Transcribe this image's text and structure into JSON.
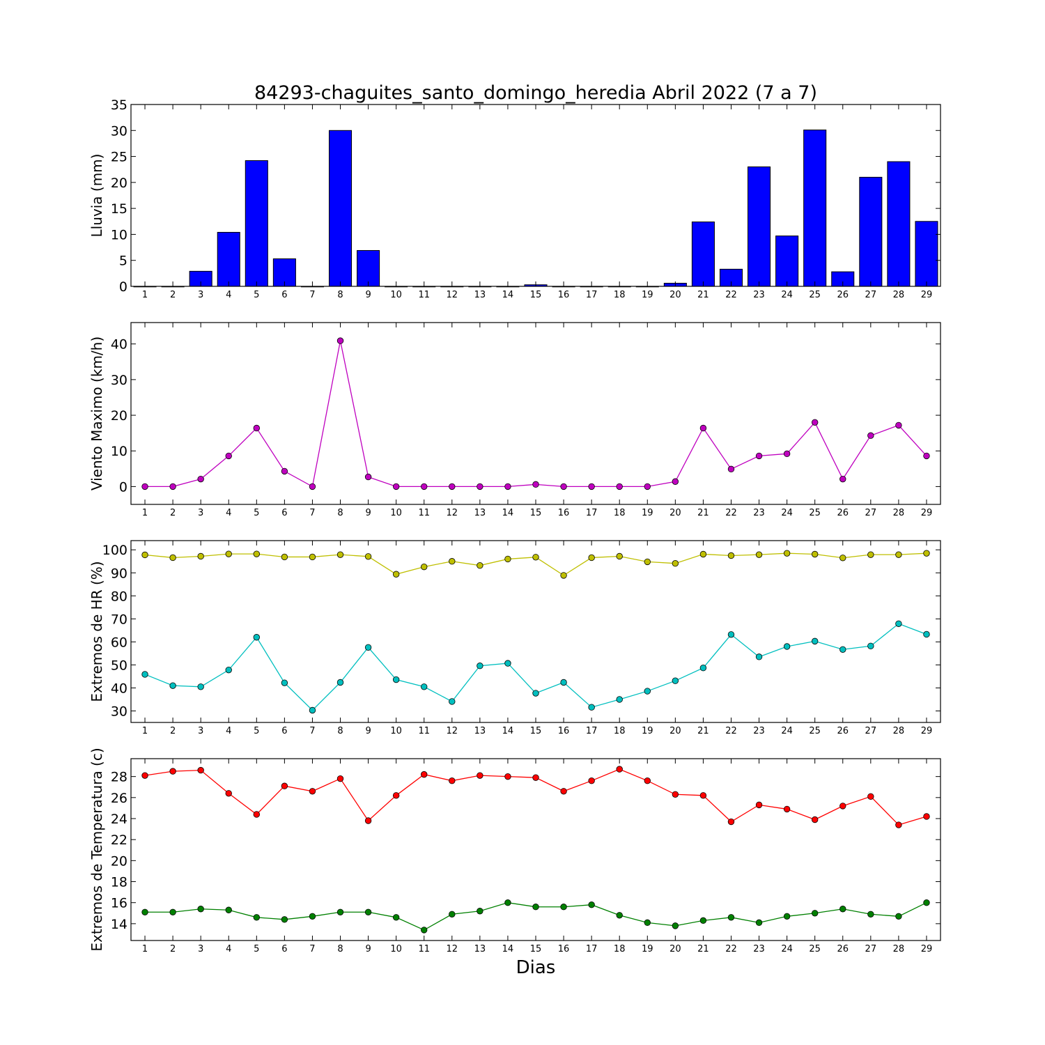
{
  "title": "84293-chaguites_santo_domingo_heredia Abril 2022  (7 a 7)",
  "xlabel": "Dias",
  "chart_data": [
    {
      "type": "bar",
      "ylabel": "Lluvia (mm)",
      "ylim": [
        0,
        35
      ],
      "yticks": [
        0,
        5,
        10,
        15,
        20,
        25,
        30,
        35
      ],
      "categories": [
        1,
        2,
        3,
        4,
        5,
        6,
        7,
        8,
        9,
        10,
        11,
        12,
        13,
        14,
        15,
        16,
        17,
        18,
        19,
        20,
        21,
        22,
        23,
        24,
        25,
        26,
        27,
        28,
        29
      ],
      "series": [
        {
          "color": "#0000ff",
          "values": [
            0,
            0,
            2.9,
            10.4,
            24.2,
            5.3,
            0,
            30,
            6.9,
            0,
            0,
            0,
            0,
            0,
            0.3,
            0,
            0,
            0,
            0,
            0.6,
            12.4,
            3.3,
            23,
            9.7,
            30.1,
            2.8,
            21,
            24,
            12.5
          ]
        }
      ]
    },
    {
      "type": "line",
      "ylabel": "Viento Maximo (km/h)",
      "ylim": [
        -5,
        46
      ],
      "yticks": [
        0,
        10,
        20,
        30,
        40
      ],
      "x": [
        1,
        2,
        3,
        4,
        5,
        6,
        7,
        8,
        9,
        10,
        11,
        12,
        13,
        14,
        15,
        16,
        17,
        18,
        19,
        20,
        21,
        22,
        23,
        24,
        25,
        26,
        27,
        28,
        29
      ],
      "series": [
        {
          "color": "#bf00bf",
          "values": [
            0,
            0,
            2.1,
            8.6,
            16.4,
            4.3,
            0,
            40.9,
            2.7,
            0,
            0,
            0,
            0,
            0,
            0.6,
            0,
            0,
            0,
            0,
            1.4,
            16.4,
            4.9,
            8.6,
            9.2,
            18,
            2.1,
            14.3,
            17.2,
            8.6
          ]
        }
      ]
    },
    {
      "type": "line",
      "ylabel": "Extremos de HR (%)",
      "ylim": [
        25,
        104
      ],
      "yticks": [
        30,
        40,
        50,
        60,
        70,
        80,
        90,
        100
      ],
      "x": [
        1,
        2,
        3,
        4,
        5,
        6,
        7,
        8,
        9,
        10,
        11,
        12,
        13,
        14,
        15,
        16,
        17,
        18,
        19,
        20,
        21,
        22,
        23,
        24,
        25,
        26,
        27,
        28,
        29
      ],
      "series": [
        {
          "color": "#bfbf00",
          "values": [
            97.8,
            96.6,
            97.2,
            98.2,
            98.2,
            96.9,
            96.9,
            97.9,
            97.1,
            89.4,
            92.6,
            95,
            93.2,
            96,
            96.8,
            88.9,
            96.6,
            97.2,
            94.8,
            94.1,
            98.1,
            97.5,
            97.9,
            98.5,
            98.1,
            96.5,
            97.9,
            97.9,
            98.5
          ]
        },
        {
          "color": "#00bfbf",
          "values": [
            45.9,
            41,
            40.5,
            47.8,
            62,
            42.2,
            30.3,
            42.4,
            57.6,
            43.6,
            40.5,
            34.1,
            49.6,
            50.7,
            37.7,
            42.4,
            31.6,
            35,
            38.6,
            43.1,
            48.7,
            63.2,
            53.5,
            58,
            60.3,
            56.7,
            58.2,
            67.9,
            63.3
          ]
        }
      ]
    },
    {
      "type": "line",
      "ylabel": "Extremos de Temperatura (c)",
      "ylim": [
        12.4,
        29.7
      ],
      "yticks": [
        14,
        16,
        18,
        20,
        22,
        24,
        26,
        28
      ],
      "x": [
        1,
        2,
        3,
        4,
        5,
        6,
        7,
        8,
        9,
        10,
        11,
        12,
        13,
        14,
        15,
        16,
        17,
        18,
        19,
        20,
        21,
        22,
        23,
        24,
        25,
        26,
        27,
        28,
        29
      ],
      "series": [
        {
          "color": "#ff0000",
          "values": [
            28.1,
            28.5,
            28.6,
            26.4,
            24.4,
            27.1,
            26.6,
            27.8,
            23.8,
            26.2,
            28.2,
            27.6,
            28.1,
            28,
            27.9,
            26.6,
            27.6,
            28.7,
            27.6,
            26.3,
            26.2,
            23.7,
            25.3,
            24.9,
            23.9,
            25.2,
            26.1,
            23.4,
            24.2
          ]
        },
        {
          "color": "#008000",
          "values": [
            15.1,
            15.1,
            15.4,
            15.3,
            14.6,
            14.4,
            14.7,
            15.1,
            15.1,
            14.6,
            13.4,
            14.9,
            15.2,
            16,
            15.6,
            15.6,
            15.8,
            14.8,
            14.1,
            13.8,
            14.3,
            14.6,
            14.1,
            14.7,
            15,
            15.4,
            14.9,
            14.7,
            16
          ]
        }
      ]
    }
  ]
}
